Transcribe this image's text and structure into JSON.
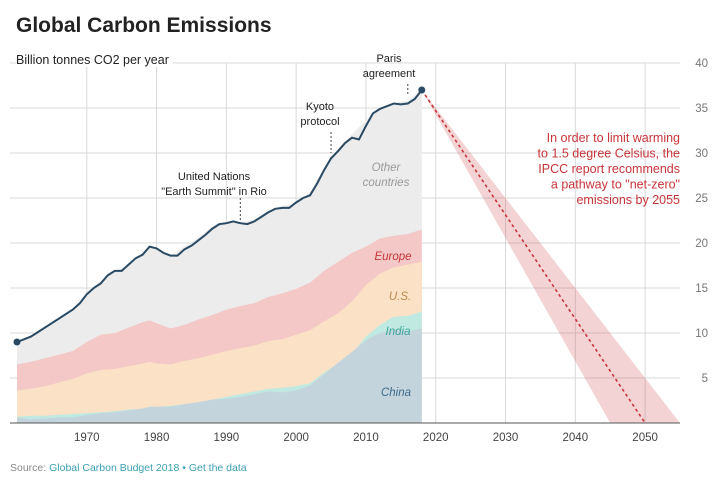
{
  "title": "Global Carbon Emissions",
  "subtitle": "Billion tonnes CO2 per year",
  "source": {
    "prefix": "Source: ",
    "link1": "Global Carbon Budget 2018",
    "separator": " • ",
    "link2": "Get the data"
  },
  "colors": {
    "total_line": "#2a4a63",
    "other": "#ececec",
    "europe": "#f3c8c6",
    "us": "#fbe1c6",
    "india": "#bfe9e1",
    "china": "#c4d4dc",
    "projection": "#c7353b",
    "grid": "#d9d9d9"
  },
  "chart_data": {
    "type": "area",
    "title": "Global Carbon Emissions",
    "ylabel": "Billion tonnes CO2 per year",
    "xlim": [
      1959,
      2055
    ],
    "ylim": [
      0,
      40
    ],
    "x_ticks": [
      1970,
      1980,
      1990,
      2000,
      2010,
      2020,
      2030,
      2040,
      2050
    ],
    "y_ticks": [
      5,
      10,
      15,
      20,
      25,
      30,
      35,
      40
    ],
    "grid": true,
    "x": [
      1960,
      1962,
      1964,
      1966,
      1968,
      1970,
      1972,
      1974,
      1976,
      1978,
      1979,
      1980,
      1982,
      1984,
      1986,
      1988,
      1990,
      1992,
      1994,
      1996,
      1998,
      2000,
      2002,
      2004,
      2006,
      2008,
      2010,
      2012,
      2014,
      2016,
      2018
    ],
    "stacked_series": [
      {
        "name": "China",
        "values": [
          0.6,
          0.4,
          0.5,
          0.6,
          0.6,
          0.9,
          1.1,
          1.2,
          1.4,
          1.6,
          1.8,
          1.8,
          1.8,
          2.1,
          2.3,
          2.6,
          2.7,
          2.9,
          3.2,
          3.5,
          3.4,
          3.6,
          4.2,
          5.4,
          6.7,
          7.9,
          9.2,
          10.0,
          10.4,
          10.2,
          10.5
        ]
      },
      {
        "name": "India",
        "values": [
          0.7,
          0.8,
          0.8,
          0.9,
          1.0,
          1.1,
          1.2,
          1.3,
          1.5,
          1.6,
          1.8,
          1.8,
          1.9,
          2.1,
          2.3,
          2.6,
          2.9,
          3.2,
          3.5,
          3.8,
          3.9,
          4.1,
          4.4,
          5.6,
          6.6,
          7.7,
          9.6,
          10.9,
          11.8,
          11.9,
          12.4
        ]
      },
      {
        "name": "U.S.",
        "values": [
          3.6,
          3.8,
          4.1,
          4.5,
          4.9,
          5.5,
          5.9,
          6.0,
          6.3,
          6.6,
          6.8,
          6.6,
          6.5,
          6.9,
          7.2,
          7.6,
          8.0,
          8.3,
          8.6,
          9.1,
          9.3,
          9.8,
          10.3,
          11.3,
          12.2,
          13.5,
          15.3,
          16.6,
          17.3,
          17.6,
          17.9
        ]
      },
      {
        "name": "Europe",
        "values": [
          6.5,
          6.8,
          7.2,
          7.6,
          8.0,
          9.0,
          9.8,
          10.0,
          10.6,
          11.2,
          11.4,
          11.1,
          10.5,
          10.9,
          11.5,
          12.0,
          12.6,
          13.0,
          13.3,
          14.0,
          14.4,
          14.9,
          15.6,
          16.9,
          17.9,
          18.9,
          19.6,
          20.5,
          20.8,
          21.0,
          21.5
        ]
      },
      {
        "name": "Other countries",
        "values": [
          9.0,
          9.6,
          10.4,
          11.4,
          12.4,
          14.5,
          15.8,
          16.9,
          17.5,
          18.8,
          19.6,
          19.2,
          18.6,
          19.6,
          20.6,
          21.8,
          22.4,
          22.3,
          22.6,
          23.5,
          24.1,
          24.4,
          25.7,
          28.3,
          30.5,
          32.1,
          33.6,
          35.0,
          35.6,
          35.8,
          37.0
        ]
      }
    ],
    "total_series": {
      "name": "Total",
      "x": [
        1960,
        1961,
        1962,
        1963,
        1964,
        1965,
        1966,
        1967,
        1968,
        1969,
        1970,
        1971,
        1972,
        1973,
        1974,
        1975,
        1976,
        1977,
        1978,
        1979,
        1980,
        1981,
        1982,
        1983,
        1984,
        1985,
        1986,
        1987,
        1988,
        1989,
        1990,
        1991,
        1992,
        1993,
        1994,
        1995,
        1996,
        1997,
        1998,
        1999,
        2000,
        2001,
        2002,
        2003,
        2004,
        2005,
        2006,
        2007,
        2008,
        2009,
        2010,
        2011,
        2012,
        2013,
        2014,
        2015,
        2016,
        2017,
        2018
      ],
      "values": [
        9.0,
        9.3,
        9.6,
        10.1,
        10.6,
        11.1,
        11.6,
        12.1,
        12.6,
        13.3,
        14.3,
        15.0,
        15.5,
        16.4,
        16.9,
        16.9,
        17.6,
        18.3,
        18.7,
        19.6,
        19.4,
        18.9,
        18.6,
        18.6,
        19.3,
        19.7,
        20.3,
        20.9,
        21.6,
        22.1,
        22.2,
        22.4,
        22.2,
        22.1,
        22.4,
        22.9,
        23.4,
        23.8,
        23.9,
        23.9,
        24.5,
        25.0,
        25.3,
        26.6,
        28.1,
        29.4,
        30.2,
        31.1,
        31.7,
        31.5,
        33.0,
        34.4,
        34.9,
        35.2,
        35.5,
        35.4,
        35.5,
        36.0,
        37.0
      ]
    },
    "projection": {
      "start": [
        2018,
        37.0
      ],
      "end": [
        2050,
        0
      ],
      "band_lower_end_year": 2045,
      "band_upper_end_year": 2055
    },
    "series_labels": {
      "other": "Other\ncountries",
      "europe": "Europe",
      "us": "U.S.",
      "india": "India",
      "china": "China"
    },
    "annotations": [
      {
        "id": "earth-summit",
        "text": "United Nations\n\"Earth Summit\" in Rio",
        "x": 1992,
        "y": 22.2
      },
      {
        "id": "kyoto",
        "text": "Kyoto\nprotocol",
        "x": 2005,
        "y": 29.8
      },
      {
        "id": "paris",
        "text": "Paris\nagreement",
        "x": 2016,
        "y": 36.0
      }
    ],
    "callout": "In order to limit warming\nto 1.5 degree Celsius, the\nIPCC report recommends\na pathway to \"net-zero\"\nemissions by 2055"
  }
}
